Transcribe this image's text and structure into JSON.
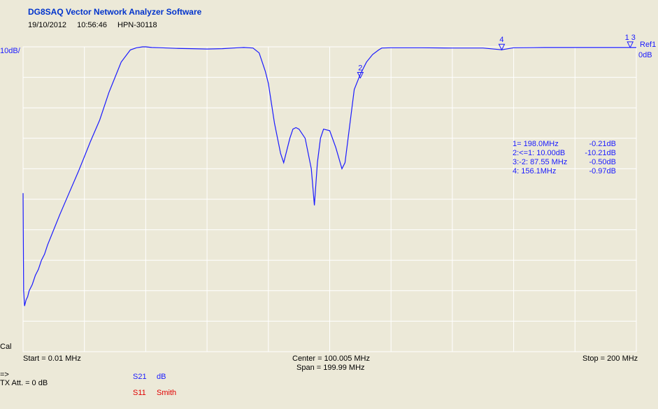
{
  "app_title": "DG8SAQ Vector Network Analyzer Software",
  "meta": {
    "date": "19/10/2012",
    "time": "10:56:46",
    "device": "HPN-30118"
  },
  "axis": {
    "y_scale_label": "10dB/",
    "ref_label": "Ref1",
    "ref_value": "0dB",
    "cal_label": "Cal",
    "start_label": "Start = 0.01 MHz",
    "center_label": "Center = 100.005 MHz",
    "span_label": "Span = 199.99 MHz",
    "stop_label": "Stop = 200 MHz"
  },
  "status": {
    "arrow": "=>",
    "tx_att": "TX Att.  = 0 dB"
  },
  "traces": [
    {
      "name": "S21",
      "format": "dB",
      "color": "#1a1aff"
    },
    {
      "name": "S11",
      "format": "Smith",
      "color": "#e00000"
    }
  ],
  "markers_readout": [
    {
      "label": "1=  198.0MHz",
      "value": "-0.21dB"
    },
    {
      "label": "2:<=1:  10.00dB",
      "value": "-10.21dB"
    },
    {
      "label": "3:-2:  87.55 MHz",
      "value": "-0.50dB"
    },
    {
      "label": "4:  156.1MHz",
      "value": "-0.97dB"
    }
  ],
  "chart_data": {
    "type": "line",
    "grid": true,
    "xlim": [
      0.01,
      200
    ],
    "ylim": [
      -100,
      0
    ],
    "y_div_db": 10,
    "series": [
      {
        "name": "S21",
        "color": "#1a1aff",
        "x": [
          0.01,
          0.2,
          0.5,
          1,
          1.5,
          2,
          3,
          4,
          5,
          6,
          7,
          8,
          10,
          12,
          15,
          18,
          20,
          22,
          25,
          28,
          30,
          32,
          35,
          37,
          39,
          40,
          42,
          45,
          50,
          55,
          60,
          65,
          70,
          72,
          75,
          77,
          79,
          80,
          82,
          84,
          85,
          87,
          88,
          89,
          90,
          92,
          94,
          95,
          96,
          97,
          98,
          100,
          102,
          104,
          105,
          106,
          107,
          108,
          110,
          112,
          114,
          116,
          117,
          120,
          122,
          125,
          130,
          140,
          150,
          156.1,
          160,
          170,
          180,
          190,
          198,
          200
        ],
        "y": [
          -48,
          -80,
          -85,
          -83,
          -82,
          -80,
          -78,
          -75,
          -73,
          -70,
          -68,
          -65,
          -60,
          -55,
          -48,
          -41,
          -36,
          -31,
          -24,
          -15,
          -10,
          -5,
          -1,
          -0.3,
          0,
          0,
          -0.2,
          -0.3,
          -0.5,
          -0.6,
          -0.7,
          -0.6,
          -0.3,
          -0.2,
          -0.4,
          -2,
          -8,
          -12,
          -25,
          -35,
          -38,
          -30,
          -27,
          -26.5,
          -27,
          -30,
          -40,
          -52,
          -38,
          -30,
          -27,
          -27.5,
          -33,
          -40,
          -38,
          -30,
          -22,
          -14,
          -9,
          -5,
          -2.5,
          -1,
          -0.4,
          -0.3,
          -0.3,
          -0.3,
          -0.3,
          -0.4,
          -0.4,
          -0.97,
          -0.3,
          -0.2,
          -0.2,
          -0.2,
          -0.21,
          -0.2
        ]
      }
    ],
    "markers": [
      {
        "id": "1",
        "x": 198.0,
        "y": -0.21
      },
      {
        "id": "2",
        "x": 110.0,
        "y": -10.21
      },
      {
        "id": "3",
        "x": 198.0,
        "y": -0.21
      },
      {
        "id": "4",
        "x": 156.1,
        "y": -0.97
      }
    ]
  }
}
